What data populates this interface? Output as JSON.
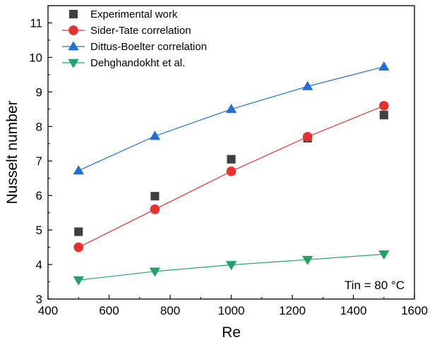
{
  "chart_data": {
    "type": "scatter",
    "xlabel": "Re",
    "ylabel": "Nusselt number",
    "xlim": [
      400,
      1600
    ],
    "ylim": [
      3,
      11.5
    ],
    "xticks": [
      "400",
      "600",
      "800",
      "1000",
      "1200",
      "1400",
      "1600"
    ],
    "yticks": [
      "3",
      "4",
      "5",
      "6",
      "7",
      "8",
      "9",
      "10",
      "11"
    ],
    "annotation": "Tin = 80 °C",
    "legend_position": "top-left",
    "series": [
      {
        "name": "Experimental work",
        "marker": "square",
        "line": false,
        "color": "#404040",
        "x": [
          500,
          750,
          1000,
          1250,
          1500
        ],
        "y": [
          4.95,
          5.98,
          7.05,
          7.66,
          8.33
        ]
      },
      {
        "name": "Sider-Tate correlation",
        "marker": "circle",
        "line": true,
        "color": "#e8312f",
        "x": [
          500,
          750,
          1000,
          1250,
          1500
        ],
        "y": [
          4.5,
          5.6,
          6.7,
          7.7,
          8.6
        ]
      },
      {
        "name": "Dittus-Boelter correlation",
        "marker": "triangle-up",
        "line": true,
        "color": "#1f6fd6",
        "x": [
          500,
          750,
          1000,
          1250,
          1500
        ],
        "y": [
          6.72,
          7.72,
          8.5,
          9.16,
          9.73
        ]
      },
      {
        "name": "Dehghandokht et al.",
        "marker": "triangle-down",
        "line": true,
        "color": "#21a366",
        "x": [
          500,
          750,
          1000,
          1250,
          1500
        ],
        "y": [
          3.55,
          3.8,
          3.99,
          4.14,
          4.3
        ]
      }
    ]
  }
}
